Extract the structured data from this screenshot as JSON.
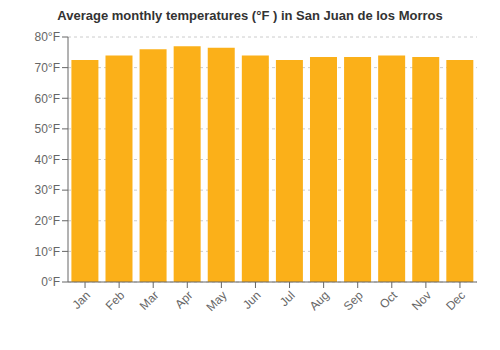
{
  "chart_data": {
    "type": "bar",
    "title": "Average monthly temperatures (°F ) in San Juan de los Morros",
    "categories": [
      "Jan",
      "Feb",
      "Mar",
      "Apr",
      "May",
      "Jun",
      "Jul",
      "Aug",
      "Sep",
      "Oct",
      "Nov",
      "Dec"
    ],
    "values": [
      72.5,
      74.0,
      76.0,
      77.0,
      76.5,
      74.0,
      72.5,
      73.5,
      73.5,
      74.0,
      73.5,
      72.5
    ],
    "color": "#FBB019",
    "ylim": [
      0,
      80
    ],
    "yticks": [
      {
        "value": 0,
        "label": "0°F"
      },
      {
        "value": 10,
        "label": "10°F"
      },
      {
        "value": 20,
        "label": "20°F"
      },
      {
        "value": 30,
        "label": "30°F"
      },
      {
        "value": 40,
        "label": "40°F"
      },
      {
        "value": 50,
        "label": "50°F"
      },
      {
        "value": 60,
        "label": "60°F"
      },
      {
        "value": 70,
        "label": "70°F"
      },
      {
        "value": 80,
        "label": "80°F"
      }
    ],
    "grid": true
  }
}
